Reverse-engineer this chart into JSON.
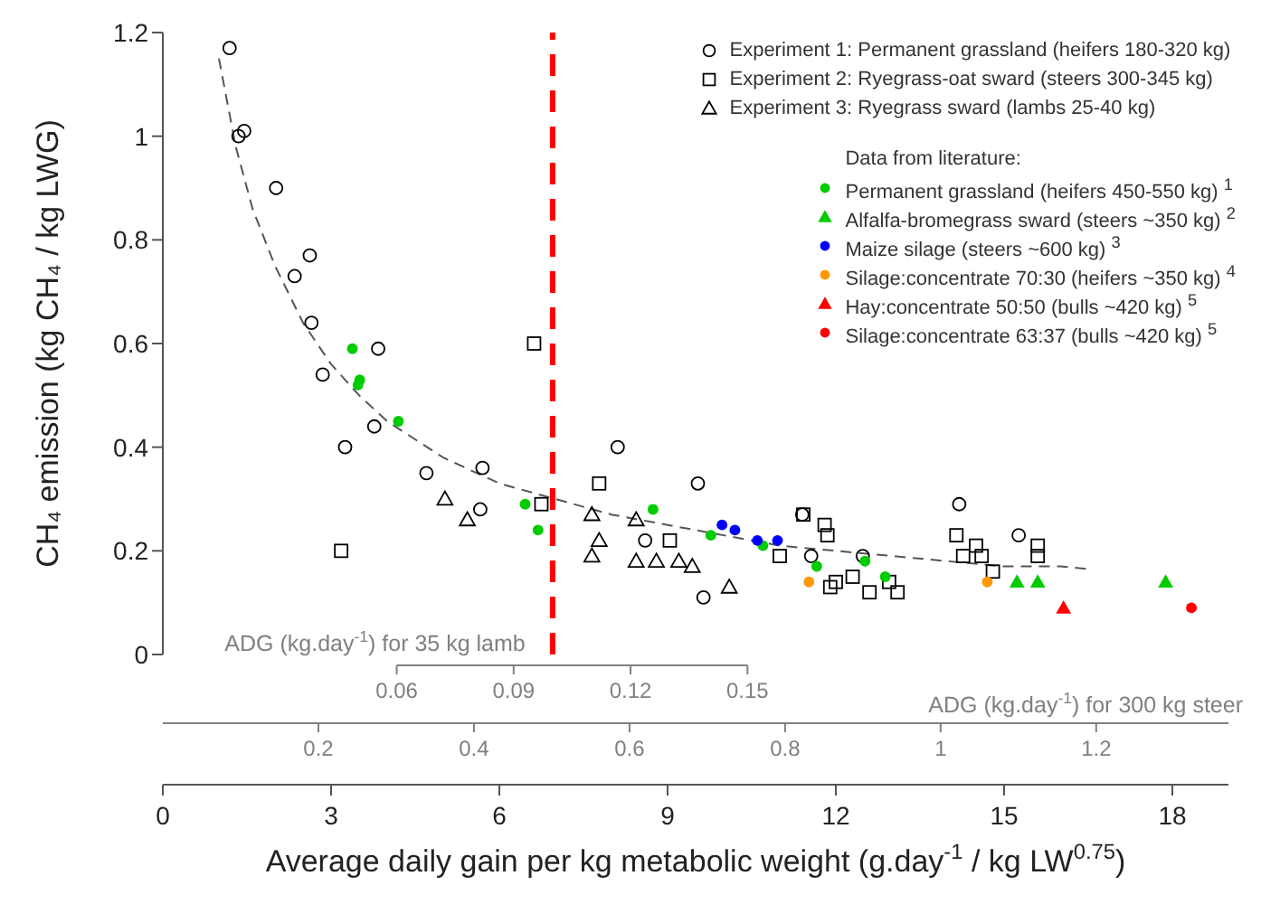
{
  "chart_data": {
    "type": "scatter",
    "xlabel": "Average daily gain per kg metabolic weight  (g.day$^{-1}$ / kg LW$^{0.75}$)",
    "ylabel": "CH₄ emission  (kg CH₄ / kg LWG)",
    "xlim": [
      0,
      19
    ],
    "xticks": [
      0,
      3,
      6,
      9,
      12,
      15,
      18
    ],
    "ylim": [
      0,
      1.2
    ],
    "yticks": [
      0,
      0.2,
      0.4,
      0.6,
      0.8,
      1,
      1.2
    ],
    "x2label": "ADG (kg.day$^{-1}$) for 300 kg steer",
    "x2lim": [
      0,
      1.37
    ],
    "x2ticks": [
      0.2,
      0.4,
      0.6,
      0.8,
      1,
      1.2
    ],
    "annotations": [
      "ADG (kg.day$^{-1}$) for 35 kg lamb",
      "0.06",
      "0.09",
      "0.12",
      "0.15"
    ],
    "legend": "top right",
    "legend_title": "Data from literature:",
    "ref_lines": [
      {
        "axis": "x",
        "value": 6.95,
        "color": "#ff0000",
        "line_style": "dashed"
      }
    ],
    "series": [
      {
        "type": "line",
        "color": "#555555",
        "line_style": "dashed",
        "x": [
          1.0,
          1.3,
          1.6,
          2.0,
          2.5,
          3.0,
          3.5,
          4,
          5,
          6,
          7,
          8,
          9,
          10,
          11,
          12,
          13,
          14,
          15,
          16,
          16.5
        ],
        "values": [
          1.15,
          0.98,
          0.86,
          0.75,
          0.64,
          0.56,
          0.5,
          0.45,
          0.38,
          0.33,
          0.3,
          0.27,
          0.25,
          0.23,
          0.21,
          0.2,
          0.19,
          0.18,
          0.17,
          0.17,
          0.165
        ]
      },
      {
        "name": "Experiment 1: Permanent grassland (heifers 180-320 kg)",
        "color": "#000000",
        "marker": "circle",
        "x": [
          1.19,
          1.35,
          1.45,
          2.02,
          2.62,
          2.35,
          2.65,
          3.84,
          2.85,
          3.77,
          3.25,
          4.7,
          5.7,
          5.66,
          8.11,
          8.6,
          9.54,
          9.64,
          11.56,
          12.48,
          14.2,
          15.26,
          11.4
        ],
        "values": [
          1.17,
          1.0,
          1.01,
          0.9,
          0.77,
          0.73,
          0.64,
          0.59,
          0.54,
          0.44,
          0.4,
          0.35,
          0.36,
          0.28,
          0.4,
          0.22,
          0.33,
          0.11,
          0.19,
          0.19,
          0.29,
          0.23,
          0.27
        ]
      },
      {
        "name": "Experiment 2: Ryegrass-oat sward (steers 300-345 kg)",
        "color": "#000000",
        "marker": "square",
        "x": [
          6.62,
          3.18,
          6.75,
          7.78,
          9.04,
          11.0,
          11.42,
          11.8,
          11.85,
          12.0,
          11.9,
          12.3,
          12.6,
          13.1,
          12.95,
          14.15,
          14.27,
          14.5,
          14.6,
          14.8,
          15.6,
          15.6
        ],
        "values": [
          0.6,
          0.2,
          0.29,
          0.33,
          0.22,
          0.19,
          0.27,
          0.25,
          0.23,
          0.14,
          0.13,
          0.15,
          0.12,
          0.12,
          0.14,
          0.23,
          0.19,
          0.21,
          0.19,
          0.16,
          0.21,
          0.19
        ]
      },
      {
        "name": "Experiment 3: Ryegrass sward (lambs 25-40 kg)",
        "color": "#000000",
        "marker": "triangle",
        "x": [
          5.03,
          5.43,
          7.65,
          7.78,
          7.65,
          8.44,
          8.44,
          8.8,
          9.2,
          9.44,
          10.1
        ],
        "values": [
          0.3,
          0.26,
          0.27,
          0.22,
          0.19,
          0.26,
          0.18,
          0.18,
          0.18,
          0.17,
          0.13
        ]
      },
      {
        "name": "Permanent grassland (heifers 450-550 kg) $^{1}$",
        "color": "#00cc00",
        "marker": "circle",
        "x": [
          3.38,
          3.48,
          3.51,
          4.2,
          6.46,
          6.69,
          8.74,
          9.77,
          10.7,
          11.66,
          12.52,
          12.88
        ],
        "values": [
          0.59,
          0.52,
          0.53,
          0.45,
          0.29,
          0.24,
          0.28,
          0.23,
          0.21,
          0.17,
          0.18,
          0.15
        ]
      },
      {
        "name": "Alfalfa-bromegrass sward (steers ~350 kg) $^{2}$",
        "color": "#00cc00",
        "marker": "triangle",
        "x": [
          15.23,
          15.6,
          17.88
        ],
        "values": [
          0.14,
          0.14,
          0.14
        ]
      },
      {
        "name": "Maize silage (steers ~600 kg) $^{3}$",
        "color": "#0000ff",
        "marker": "circle",
        "x": [
          9.97,
          10.2,
          10.6,
          10.96
        ],
        "values": [
          0.25,
          0.24,
          0.22,
          0.22
        ]
      },
      {
        "name": "Silage:concentrate 70:30 (heifers ~350 kg) $^{4}$",
        "color": "#ff9900",
        "marker": "circle",
        "x": [
          11.52,
          14.7
        ],
        "values": [
          0.14,
          0.14
        ]
      },
      {
        "name": "Hay:concentrate 50:50 (bulls ~420 kg) $^{5}$",
        "color": "#ff0000",
        "marker": "triangle",
        "x": [
          16.06
        ],
        "values": [
          0.09
        ]
      },
      {
        "name": "Silage:concentrate 63:37 (bulls ~420 kg) $^{5}$",
        "color": "#ff0000",
        "marker": "circle",
        "x": [
          18.34
        ],
        "values": [
          0.09
        ]
      }
    ]
  }
}
